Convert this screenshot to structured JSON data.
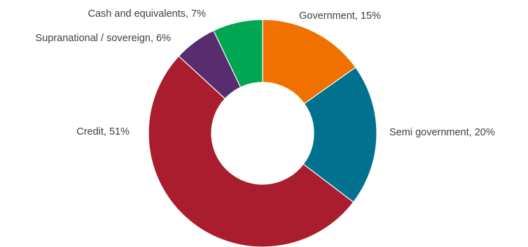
{
  "chart_data": {
    "type": "pie",
    "donut": true,
    "start": "top",
    "direction": "clockwise",
    "slices": [
      {
        "label": "Government",
        "value": 15,
        "display": "Government, 15%",
        "color": "#f07000"
      },
      {
        "label": "Semi government",
        "value": 20,
        "display": "Semi government, 20%",
        "color": "#00728f"
      },
      {
        "label": "Credit",
        "value": 51,
        "display": "Credit, 51%",
        "color": "#a91d2e"
      },
      {
        "label": "Supranational / sovereign",
        "value": 6,
        "display": "Supranational / sovereign, 6%",
        "color": "#582c6e"
      },
      {
        "label": "Cash and equivalents",
        "value": 7,
        "display": "Cash and equivalents, 7%",
        "color": "#00a651"
      }
    ]
  }
}
